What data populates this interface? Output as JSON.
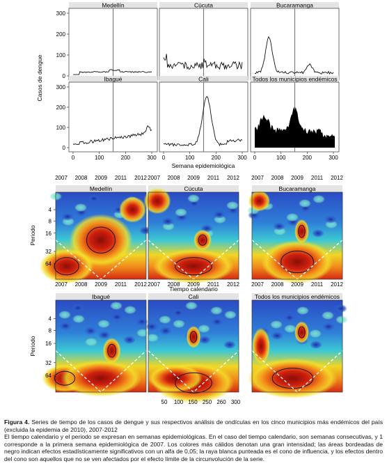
{
  "top_panel": {
    "y_axis_label": "Casos de dengue",
    "x_axis_label": "Semana epidemiológica",
    "y_ticks": [
      "0",
      "100",
      "200",
      "300"
    ],
    "x_ticks": [
      "0",
      "100",
      "200",
      "300"
    ],
    "panels": [
      {
        "title": "Medellín"
      },
      {
        "title": "Cúcuta"
      },
      {
        "title": "Bucaramanga"
      },
      {
        "title": "Ibagué"
      },
      {
        "title": "Cali"
      },
      {
        "title": "Todos los municipios endémicos"
      }
    ]
  },
  "wavelet_panel": {
    "y_axis_label": "Periodo",
    "x_axis_label": "Tiempo calendario",
    "year_ticks": [
      "2007",
      "2008",
      "2009",
      "2011",
      "2012"
    ],
    "period_ticks": [
      "4",
      "8",
      "16",
      "32",
      "64"
    ],
    "bottom_ticks_center": [
      "50",
      "100",
      "150",
      "250",
      "260",
      "300"
    ],
    "panels": [
      {
        "title": "Medellín"
      },
      {
        "title": "Cúcuta"
      },
      {
        "title": "Bucaramanga"
      },
      {
        "title": "Ibagué"
      },
      {
        "title": "Cali"
      },
      {
        "title": "Todos los municipios endémicos"
      }
    ]
  },
  "caption": {
    "label": "Figura 4.",
    "line1": "Series de tiempo de los casos de dengue y sus respectivos análisis de ondículas en los cinco municipios más endémicos del país (excluida la epidemia de 2010), 2007-2012",
    "line2": "El tiempo calendario y el periodo se expresan en semanas epidemiológicas. En el caso del tiempo calendario, son semanas consecutivas, y 1 corresponde a la primera semana epidemiológica de 2007. Los colores más cálidos denotan una gran intensidad; las áreas bordeadas de negro indican efectos estadísticamente significativos con un alfa de 0,05; la raya blanca punteada es el cono de influencia, y los efectos dentro del cono son aquellos que no se ven afectados por el efecto límite de la circunvolución de la serie."
  },
  "colors": {
    "wavelet_low": "#1f3fb5",
    "wavelet_mid": "#37c8d6",
    "wavelet_high_mid": "#f2d21f",
    "wavelet_high": "#c81e14",
    "wavelet_max": "#7a0d06",
    "title_bar": "#e4e4e4"
  }
}
